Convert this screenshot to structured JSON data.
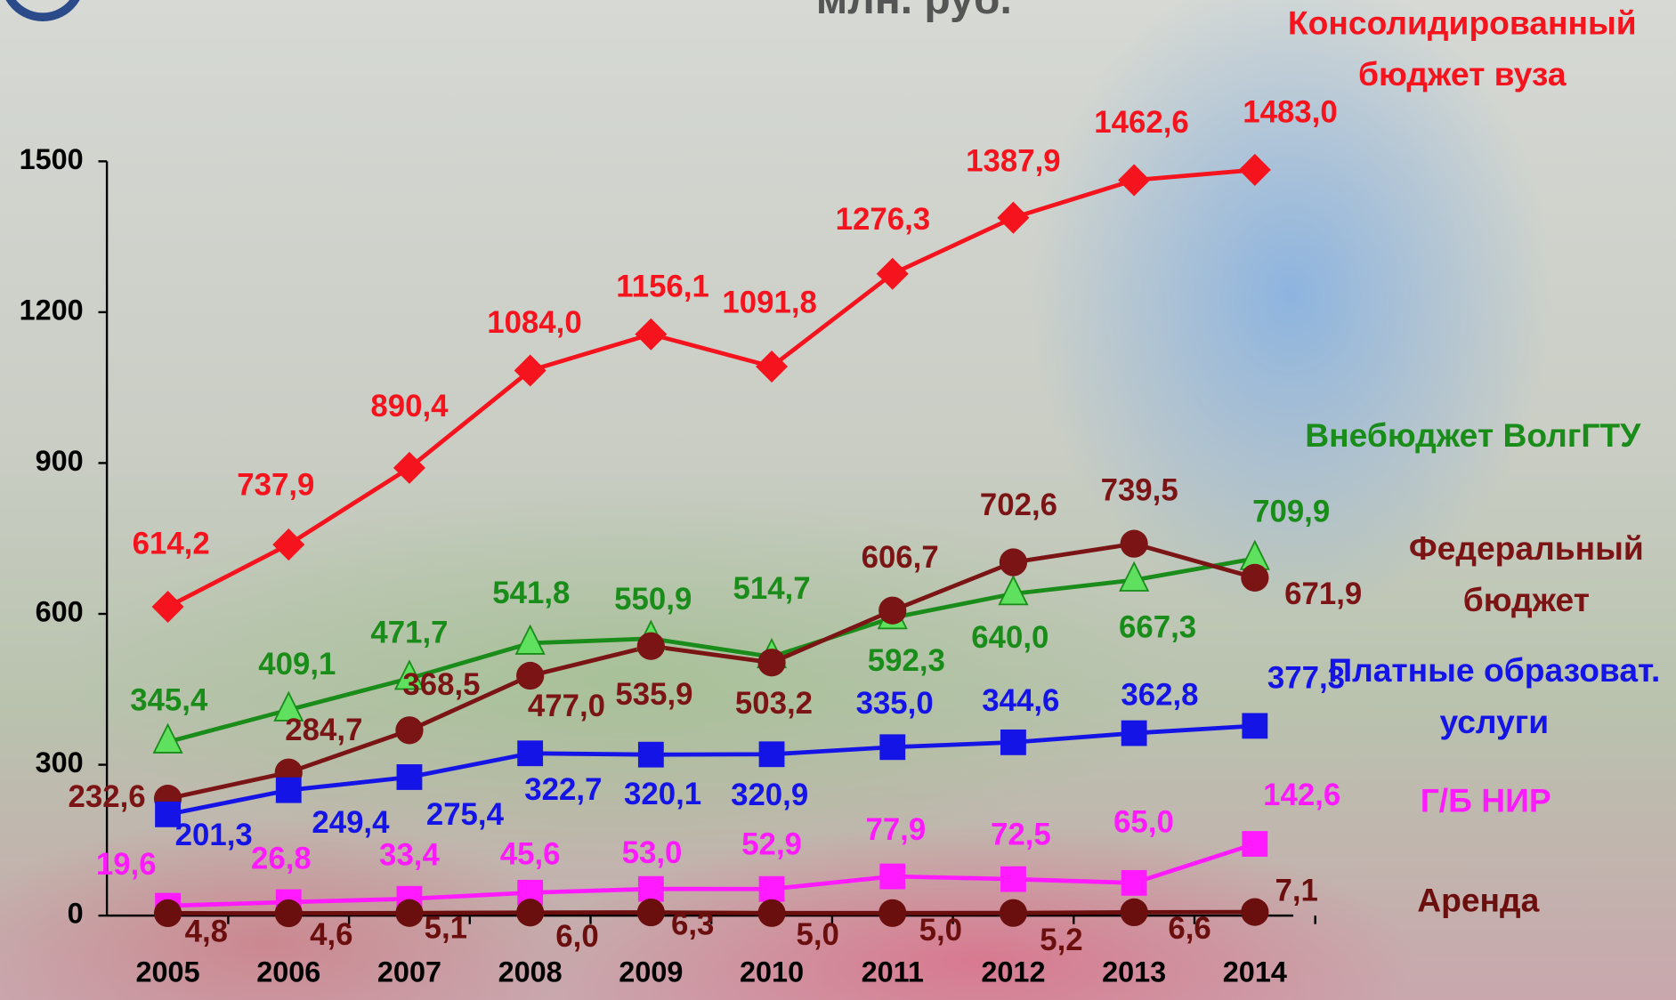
{
  "chart_data": {
    "type": "line",
    "title": "млн. руб.",
    "categories": [
      "2005",
      "2006",
      "2007",
      "2008",
      "2009",
      "2010",
      "2011",
      "2012",
      "2013",
      "2014"
    ],
    "ylim": [
      0,
      1500
    ],
    "yticks": [
      0,
      300,
      600,
      900,
      1200,
      1500
    ],
    "grid": false,
    "series": [
      {
        "name": "Консолидированный бюджет вуза",
        "color": "#f5141e",
        "marker": "diamond",
        "values": [
          614.2,
          737.9,
          890.4,
          1084.0,
          1156.1,
          1091.8,
          1276.3,
          1387.9,
          1462.6,
          1483.0
        ],
        "value_labels": [
          "614,2",
          "737,9",
          "890,4",
          "1084,0",
          "1156,1",
          "1091,8",
          "1276,3",
          "1387,9",
          "1462,6",
          "1483,0"
        ]
      },
      {
        "name": "Внебюджет ВолгГТУ",
        "color": "#1a8c1a",
        "marker": "triangle",
        "values": [
          345.4,
          409.1,
          471.7,
          541.8,
          550.9,
          514.7,
          592.3,
          640.0,
          667.3,
          709.9
        ],
        "value_labels": [
          "345,4",
          "409,1",
          "471,7",
          "541,8",
          "550,9",
          "514,7",
          "592,3",
          "640,0",
          "667,3",
          "709,9"
        ]
      },
      {
        "name": "Федеральный бюджет",
        "color": "#7b1414",
        "marker": "circle",
        "values": [
          232.6,
          284.7,
          368.5,
          477.0,
          535.9,
          503.2,
          606.7,
          702.6,
          739.5,
          671.9
        ],
        "value_labels": [
          "232,6",
          "284,7",
          "368,5",
          "477,0",
          "535,9",
          "503,2",
          "606,7",
          "702,6",
          "739,5",
          "671,9"
        ]
      },
      {
        "name": "Платные образоват. услуги",
        "color": "#1414e6",
        "marker": "square",
        "values": [
          201.3,
          249.4,
          275.4,
          322.7,
          320.1,
          320.9,
          335.0,
          344.6,
          362.8,
          377.3
        ],
        "value_labels": [
          "201,3",
          "249,4",
          "275,4",
          "322,7",
          "320,1",
          "320,9",
          "335,0",
          "344,6",
          "362,8",
          "377,3"
        ]
      },
      {
        "name": "Г/Б НИР",
        "color": "#ff1aff",
        "marker": "square",
        "values": [
          19.6,
          26.8,
          33.4,
          45.6,
          53.0,
          52.9,
          77.9,
          72.5,
          65.0,
          142.6
        ],
        "value_labels": [
          "19,6",
          "26,8",
          "33,4",
          "45,6",
          "53,0",
          "52,9",
          "77,9",
          "72,5",
          "65,0",
          "142,6"
        ]
      },
      {
        "name": "Аренда",
        "color": "#6b0e0e",
        "marker": "circle",
        "values": [
          4.8,
          4.6,
          5.1,
          6.0,
          6.3,
          5.0,
          5.0,
          5.2,
          6.6,
          7.1
        ],
        "value_labels": [
          "4,8",
          "4,6",
          "5,1",
          "6,0",
          "6,3",
          "5,0",
          "5,0",
          "5,2",
          "6,6",
          "7,1"
        ]
      }
    ]
  }
}
